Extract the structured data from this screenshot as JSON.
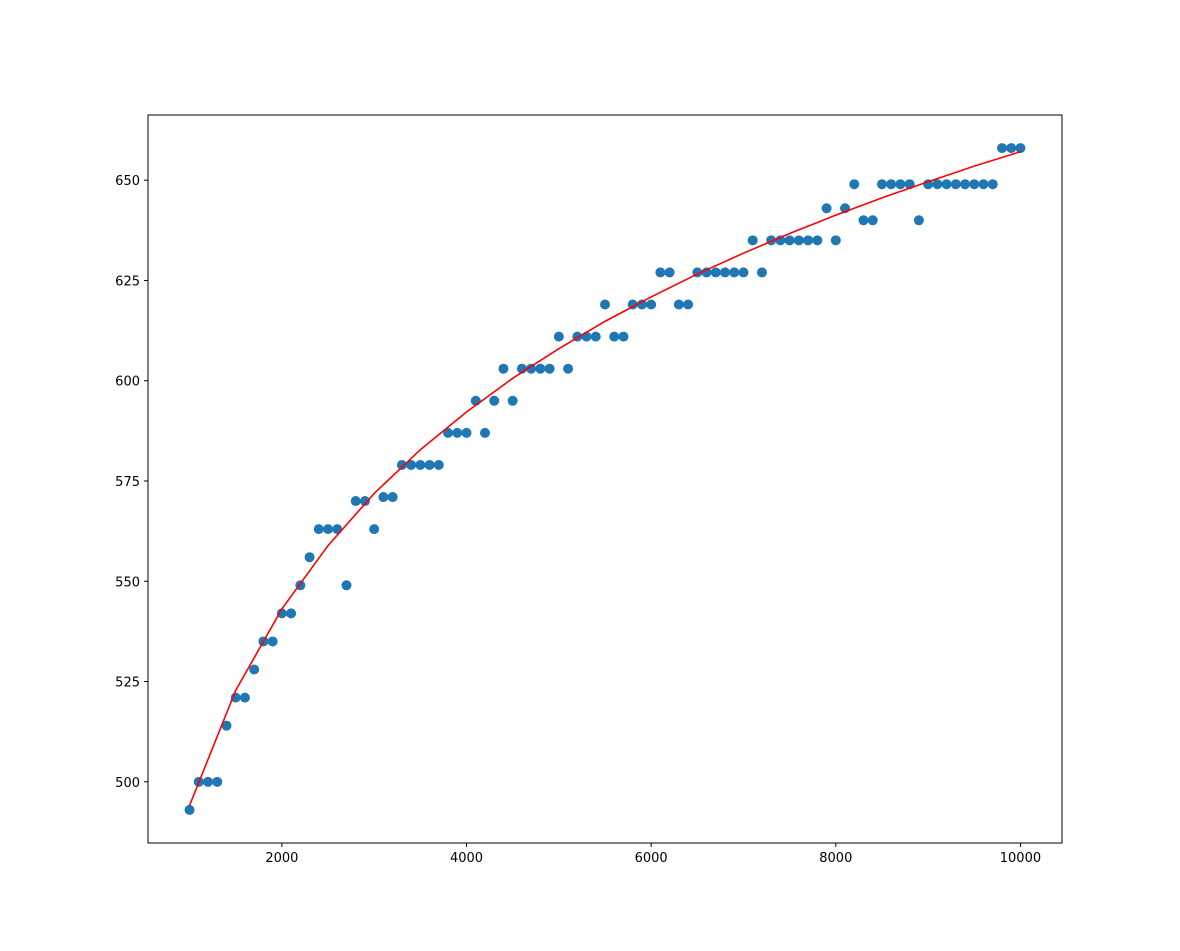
{
  "chart_data": {
    "type": "scatter",
    "color": "#1f77b4",
    "x": [
      1000,
      1100,
      1200,
      1300,
      1400,
      1500,
      1600,
      1700,
      1800,
      1900,
      2000,
      2100,
      2200,
      2300,
      2400,
      2500,
      2600,
      2700,
      2800,
      2900,
      3000,
      3100,
      3200,
      3300,
      3400,
      3500,
      3600,
      3700,
      3800,
      3900,
      4000,
      4100,
      4200,
      4300,
      4400,
      4500,
      4600,
      4700,
      4800,
      4900,
      5000,
      5100,
      5200,
      5300,
      5400,
      5500,
      5600,
      5700,
      5800,
      5900,
      6000,
      6100,
      6200,
      6300,
      6400,
      6500,
      6600,
      6700,
      6800,
      6900,
      7000,
      7100,
      7200,
      7300,
      7400,
      7500,
      7600,
      7700,
      7800,
      7900,
      8000,
      8100,
      8200,
      8300,
      8400,
      8500,
      8600,
      8700,
      8800,
      8900,
      9000,
      9100,
      9200,
      9300,
      9400,
      9500,
      9600,
      9700,
      9800,
      9900,
      10000
    ],
    "values": [
      493,
      500,
      500,
      500,
      514,
      521,
      521,
      528,
      535,
      535,
      542,
      542,
      549,
      556,
      563,
      563,
      563,
      549,
      570,
      570,
      563,
      571,
      571,
      579,
      579,
      579,
      579,
      579,
      587,
      587,
      587,
      595,
      587,
      595,
      603,
      595,
      603,
      603,
      603,
      603,
      611,
      603,
      611,
      611,
      611,
      619,
      611,
      611,
      619,
      619,
      619,
      627,
      627,
      619,
      619,
      627,
      627,
      627,
      627,
      627,
      627,
      635,
      627,
      635,
      635,
      635,
      635,
      635,
      635,
      643,
      635,
      643,
      649,
      640,
      640,
      649,
      649,
      649,
      649,
      640,
      649,
      649,
      649,
      649,
      649,
      649,
      649,
      649,
      658,
      658,
      658
    ],
    "fit": {
      "type": "line",
      "color": "red",
      "x": [
        1000,
        1500,
        2000,
        2500,
        3000,
        3500,
        4000,
        4500,
        5000,
        5500,
        6000,
        6500,
        7000,
        7500,
        8000,
        8500,
        9000,
        9500,
        10000
      ],
      "values": [
        494.1,
        522.8,
        543.1,
        558.9,
        571.9,
        582.8,
        592.2,
        600.6,
        608.0,
        614.8,
        620.9,
        626.6,
        631.8,
        636.7,
        641.3,
        645.6,
        649.6,
        653.5,
        657.1
      ]
    },
    "xlim": [
      550,
      10450
    ],
    "ylim": [
      484.75,
      666.25
    ],
    "xticks": [
      2000,
      4000,
      6000,
      8000,
      10000
    ],
    "yticks": [
      500,
      525,
      550,
      575,
      600,
      625,
      650
    ]
  }
}
